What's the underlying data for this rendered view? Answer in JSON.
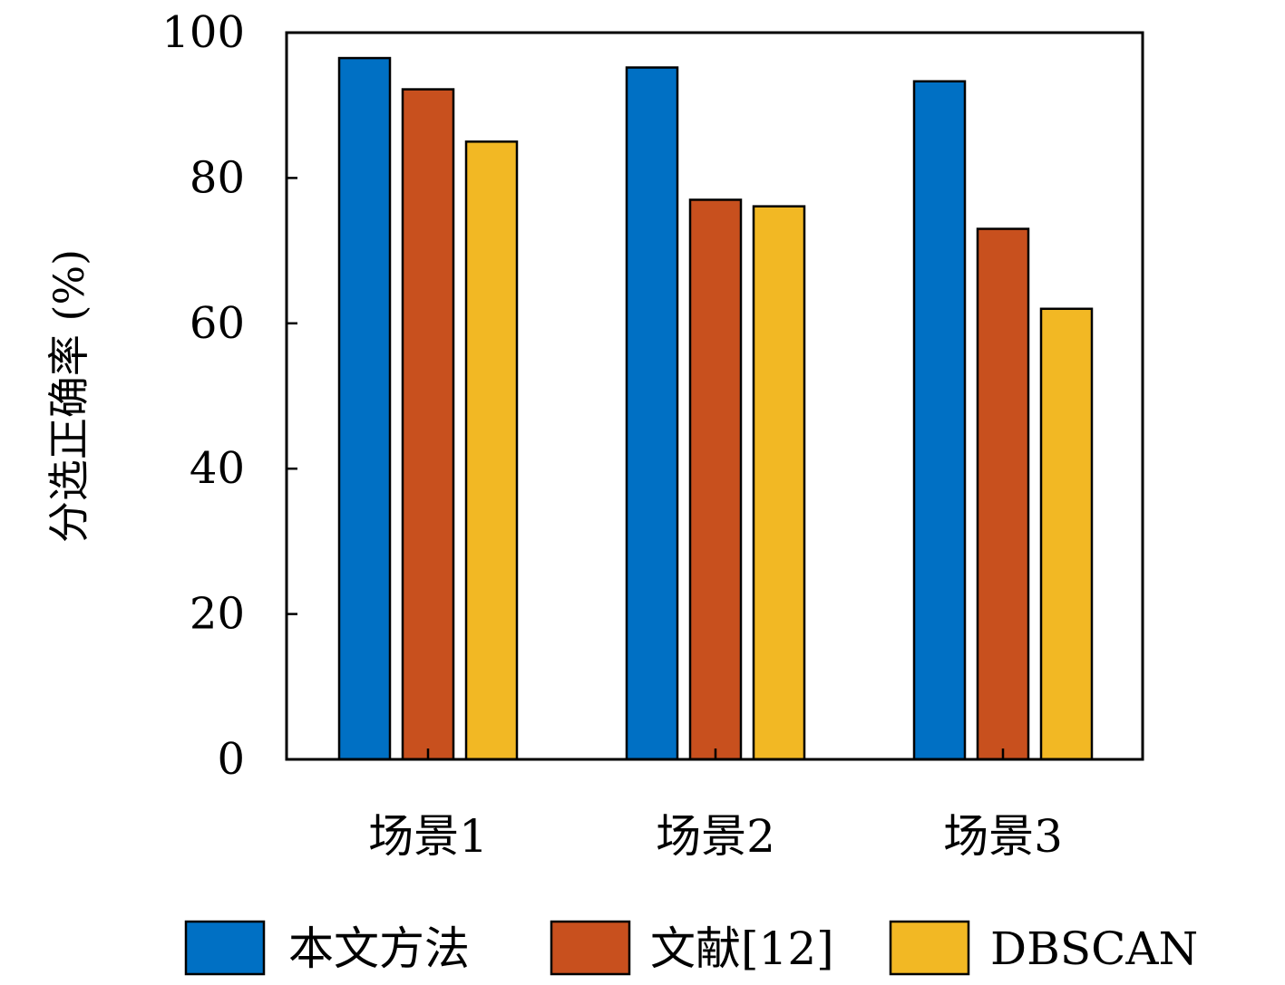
{
  "chart_data": {
    "type": "bar",
    "title": "",
    "xlabel": "",
    "ylabel": "分选正确率 (%)",
    "ylim": [
      0,
      100
    ],
    "yticks": [
      0,
      20,
      40,
      60,
      80,
      100
    ],
    "categories": [
      "场景1",
      "场景2",
      "场景3"
    ],
    "series": [
      {
        "name": "本文方法",
        "color": "#0070C4",
        "values": [
          96.5,
          95.2,
          93.3
        ]
      },
      {
        "name": "文献[12]",
        "color": "#C8501E",
        "values": [
          92.2,
          77.0,
          73.0
        ]
      },
      {
        "name": "DBSCAN",
        "color": "#F2B824",
        "values": [
          85.0,
          76.1,
          62.0
        ]
      }
    ],
    "grid": false,
    "legend_position": "bottom"
  }
}
